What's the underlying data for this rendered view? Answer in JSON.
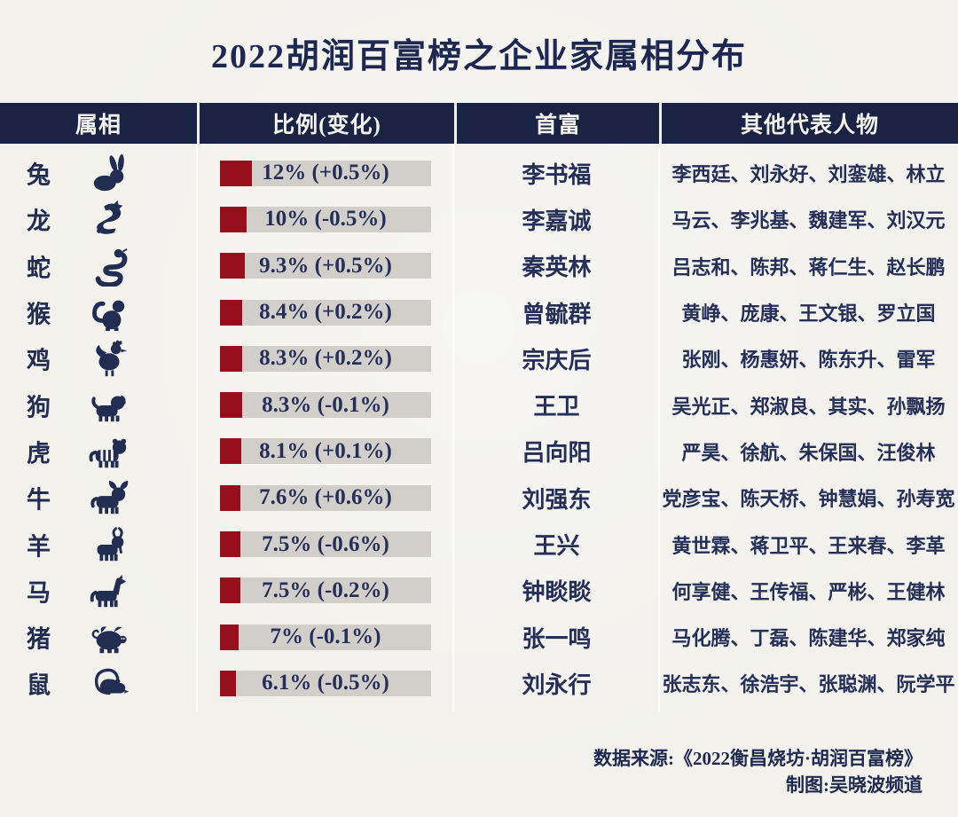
{
  "title": "2022胡润百富榜之企业家属相分布",
  "colors": {
    "background": "#f2f1ec",
    "header_bg": "#1b2344",
    "navy_text": "#262f58",
    "bar_red": "#970f1b",
    "bar_track": "#d2cfcb"
  },
  "table": {
    "headers": [
      "属相",
      "比例(变化)",
      "首富",
      "其他代表人物"
    ]
  },
  "rows": [
    {
      "zodiac": "兔",
      "icon": "rabbit-icon",
      "pct": 12,
      "pct_label": "12% (+0.5%)",
      "richest": "李书福",
      "others": "李西廷、刘永好、刘銮雄、林立"
    },
    {
      "zodiac": "龙",
      "icon": "dragon-icon",
      "pct": 10,
      "pct_label": "10% (-0.5%)",
      "richest": "李嘉诚",
      "others": "马云、李兆基、魏建军、刘汉元"
    },
    {
      "zodiac": "蛇",
      "icon": "snake-icon",
      "pct": 9.3,
      "pct_label": "9.3% (+0.5%)",
      "richest": "秦英林",
      "others": "吕志和、陈邦、蒋仁生、赵长鹏"
    },
    {
      "zodiac": "猴",
      "icon": "monkey-icon",
      "pct": 8.4,
      "pct_label": "8.4% (+0.2%)",
      "richest": "曾毓群",
      "others": "黄峥、庞康、王文银、罗立国"
    },
    {
      "zodiac": "鸡",
      "icon": "rooster-icon",
      "pct": 8.3,
      "pct_label": "8.3% (+0.2%)",
      "richest": "宗庆后",
      "others": "张刚、杨惠妍、陈东升、雷军"
    },
    {
      "zodiac": "狗",
      "icon": "dog-icon",
      "pct": 8.3,
      "pct_label": "8.3% (-0.1%)",
      "richest": "王卫",
      "others": "吴光正、郑淑良、其实、孙飘扬"
    },
    {
      "zodiac": "虎",
      "icon": "tiger-icon",
      "pct": 8.1,
      "pct_label": "8.1% (+0.1%)",
      "richest": "吕向阳",
      "others": "严昊、徐航、朱保国、汪俊林"
    },
    {
      "zodiac": "牛",
      "icon": "ox-icon",
      "pct": 7.6,
      "pct_label": "7.6% (+0.6%)",
      "richest": "刘强东",
      "others": "党彦宝、陈天桥、钟慧娟、孙寿宽"
    },
    {
      "zodiac": "羊",
      "icon": "goat-icon",
      "pct": 7.5,
      "pct_label": "7.5% (-0.6%)",
      "richest": "王兴",
      "others": "黄世霖、蒋卫平、王来春、李革"
    },
    {
      "zodiac": "马",
      "icon": "horse-icon",
      "pct": 7.5,
      "pct_label": "7.5% (-0.2%)",
      "richest": "钟睒睒",
      "others": "何享健、王传福、严彬、王健林"
    },
    {
      "zodiac": "猪",
      "icon": "pig-icon",
      "pct": 7,
      "pct_label": "7% (-0.1%)",
      "richest": "张一鸣",
      "others": "马化腾、丁磊、陈建华、郑家纯"
    },
    {
      "zodiac": "鼠",
      "icon": "rat-icon",
      "pct": 6.1,
      "pct_label": "6.1% (-0.5%)",
      "richest": "刘永行",
      "others": "张志东、徐浩宇、张聪渊、阮学平"
    }
  ],
  "footer": {
    "source": "数据来源:《2022衡昌烧坊·胡润百富榜》",
    "credit": "制图:吴晓波频道"
  },
  "chart_data": {
    "type": "bar",
    "title": "2022胡润百富榜之企业家属相分布",
    "categories": [
      "兔",
      "龙",
      "蛇",
      "猴",
      "鸡",
      "狗",
      "虎",
      "牛",
      "羊",
      "马",
      "猪",
      "鼠"
    ],
    "values": [
      12,
      10,
      9.3,
      8.4,
      8.3,
      8.3,
      8.1,
      7.6,
      7.5,
      7.5,
      7,
      6.1
    ],
    "changes": [
      0.5,
      -0.5,
      0.5,
      0.2,
      0.2,
      -0.1,
      0.1,
      0.6,
      -0.6,
      -0.2,
      -0.1,
      -0.5
    ],
    "value_unit": "%",
    "bar_color": "#970f1b",
    "orientation": "horizontal",
    "legend": "none",
    "grid": false
  }
}
